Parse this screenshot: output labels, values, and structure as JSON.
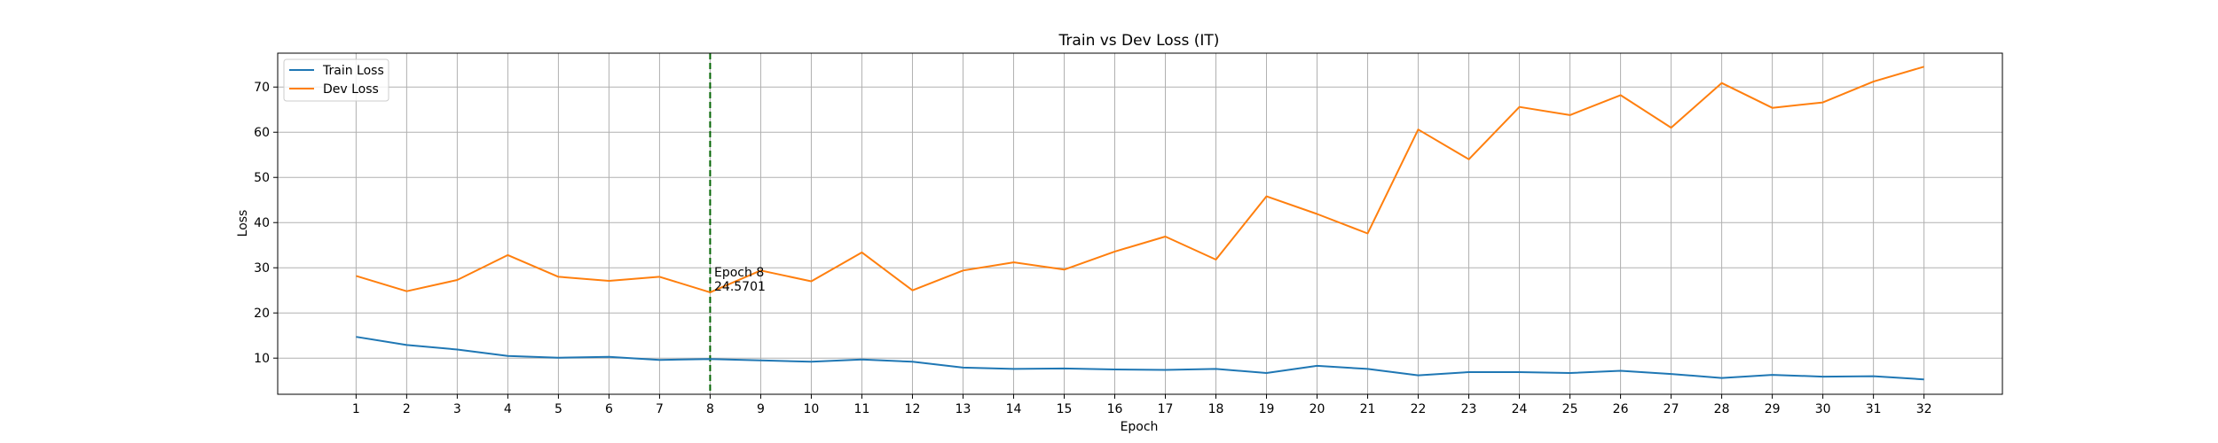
{
  "chart_data": {
    "type": "line",
    "title": "Train vs Dev Loss (IT)",
    "xlabel": "Epoch",
    "ylabel": "Loss",
    "x": [
      1,
      2,
      3,
      4,
      5,
      6,
      7,
      8,
      9,
      10,
      11,
      12,
      13,
      14,
      15,
      16,
      17,
      18,
      19,
      20,
      21,
      22,
      23,
      24,
      25,
      26,
      27,
      28,
      29,
      30,
      31,
      32
    ],
    "xlim": [
      -0.55,
      33.55
    ],
    "ylim": [
      2,
      77.5
    ],
    "yticks": [
      10,
      20,
      30,
      40,
      50,
      60,
      70
    ],
    "grid": true,
    "legend_position": "top-left",
    "series": [
      {
        "name": "Train Loss",
        "color": "#1f77b4",
        "values": [
          14.7,
          12.9,
          11.9,
          10.5,
          10.1,
          10.3,
          9.6,
          9.8,
          9.5,
          9.2,
          9.7,
          9.2,
          7.9,
          7.6,
          7.7,
          7.5,
          7.4,
          7.6,
          6.7,
          8.3,
          7.6,
          6.2,
          6.9,
          6.9,
          6.7,
          7.2,
          6.5,
          5.6,
          6.3,
          5.9,
          6.0,
          5.3
        ]
      },
      {
        "name": "Dev Loss",
        "color": "#ff7f0e",
        "values": [
          28.2,
          24.8,
          27.3,
          32.8,
          28.0,
          27.1,
          28.0,
          24.5701,
          29.4,
          27.0,
          33.4,
          25.0,
          29.4,
          31.2,
          29.6,
          33.6,
          36.9,
          31.8,
          45.8,
          41.9,
          37.6,
          60.6,
          54.0,
          65.6,
          63.8,
          68.2,
          61.0,
          70.9,
          65.4,
          66.6,
          71.2,
          74.5
        ]
      }
    ],
    "vline": {
      "x": 8,
      "color": "#006400",
      "style": "dashed"
    },
    "annotation": {
      "x": 8,
      "y": 24.5701,
      "line1": "Epoch 8",
      "line2": "24.5701"
    }
  }
}
